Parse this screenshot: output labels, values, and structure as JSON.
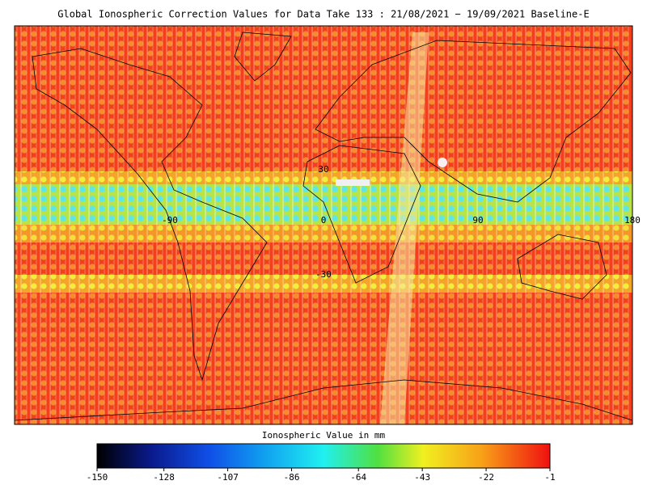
{
  "title": "Global Ionospheric Correction Values for Data Take 133 : 21/08/2021 − 19/09/2021 Baseline-E",
  "map": {
    "lat_labels": [
      "30",
      "-30"
    ],
    "lon_labels": [
      "-90",
      "0",
      "90",
      "180"
    ]
  },
  "colorbar": {
    "label": "Ionospheric Value in mm",
    "ticks": [
      -150,
      -128,
      -107,
      -86,
      -64,
      -43,
      -22,
      -1
    ]
  }
}
